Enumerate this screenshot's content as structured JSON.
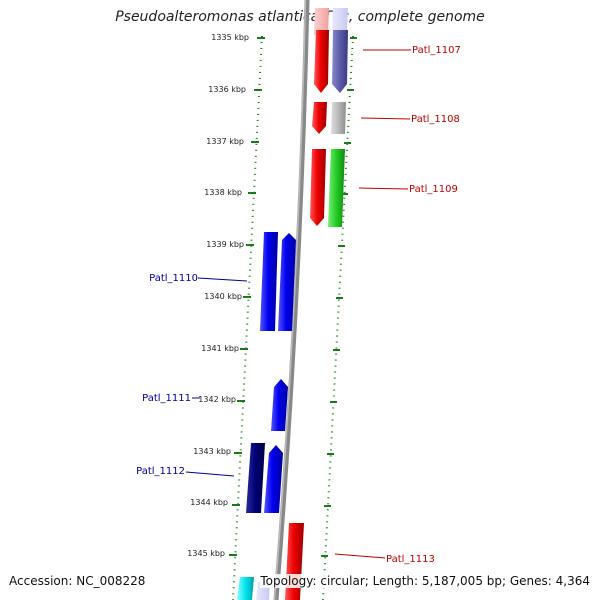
{
  "header": {
    "title": "Pseudoalteromonas atlantica T6c, complete genome"
  },
  "footer": {
    "accession": "Accession: NC_008228",
    "topology": "Topology: circular; Length: 5,187,005 bp; Genes: 4,364"
  },
  "colors": {
    "backbone": "#888888",
    "ruler": "#1a7a1a",
    "forward_red": "#ee0000",
    "reverse_blue": "#0000ee",
    "navy": "#000077",
    "slate": "#5a5aa8",
    "gray": "#b8b8b8",
    "green": "#22cc22",
    "cyan": "#00e5ee",
    "label_red": "#c00000",
    "label_blue": "#000099"
  },
  "ruler_ticks": [
    {
      "kbp": 1335,
      "label": "1335 kbp"
    },
    {
      "kbp": 1336,
      "label": "1336 kbp"
    },
    {
      "kbp": 1337,
      "label": "1337 kbp"
    },
    {
      "kbp": 1338,
      "label": "1338 kbp"
    },
    {
      "kbp": 1339,
      "label": "1339 kbp"
    },
    {
      "kbp": 1340,
      "label": "1340 kbp"
    },
    {
      "kbp": 1341,
      "label": "1341 kbp"
    },
    {
      "kbp": 1342,
      "label": "1342 kbp"
    },
    {
      "kbp": 1343,
      "label": "1343 kbp"
    },
    {
      "kbp": 1344,
      "label": "1344 kbp"
    },
    {
      "kbp": 1345,
      "label": "1345 kbp"
    }
  ],
  "gene_labels": [
    {
      "text": "Patl_1107",
      "strand": "forward"
    },
    {
      "text": "Patl_1108",
      "strand": "forward"
    },
    {
      "text": "Patl_1109",
      "strand": "forward"
    },
    {
      "text": "Patl_1110",
      "strand": "reverse"
    },
    {
      "text": "Patl_1111",
      "strand": "reverse"
    },
    {
      "text": "Patl_1112",
      "strand": "reverse"
    },
    {
      "text": "Patl_1113",
      "strand": "forward"
    }
  ]
}
